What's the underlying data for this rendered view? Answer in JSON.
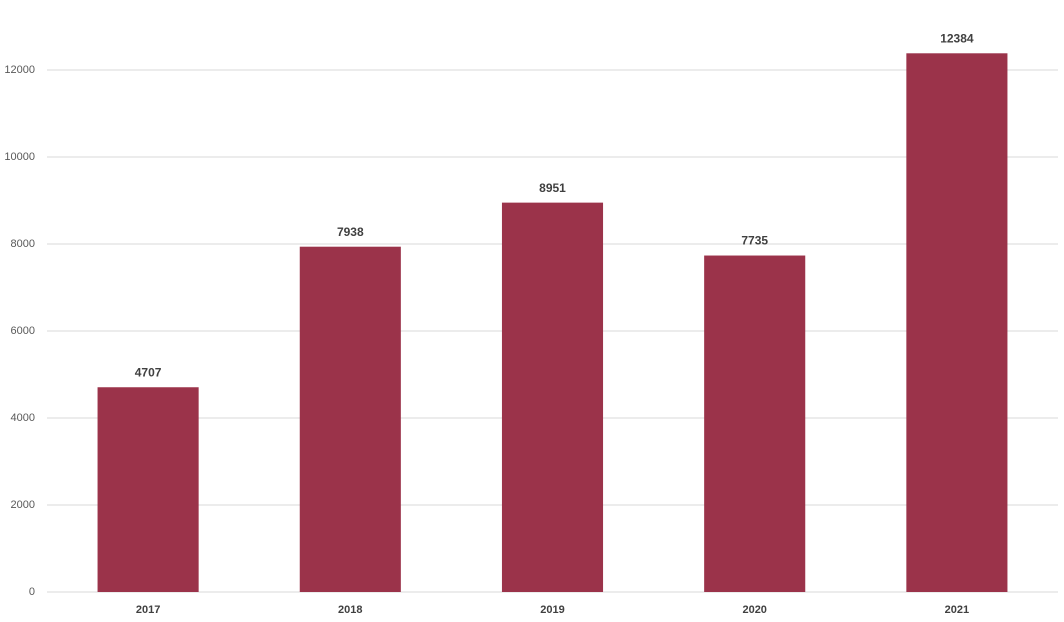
{
  "chart_data": {
    "type": "bar",
    "categories": [
      "2017",
      "2018",
      "2019",
      "2020",
      "2021"
    ],
    "values": [
      4707,
      7938,
      8951,
      7735,
      12384
    ],
    "color": "#9b334a",
    "ylim": [
      0,
      13000
    ],
    "yticks": [
      0,
      2000,
      4000,
      6000,
      8000,
      10000,
      12000
    ],
    "grid": true
  }
}
